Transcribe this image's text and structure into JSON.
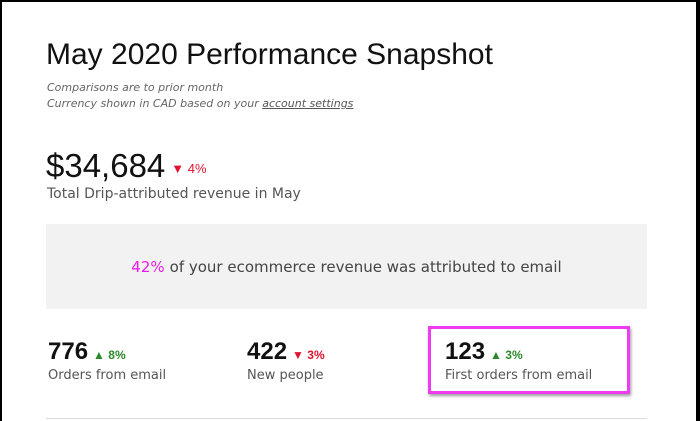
{
  "title": "May 2020 Performance Snapshot",
  "subtitle": {
    "line1": "Comparisons are to prior month",
    "line2_prefix": "Currency shown in CAD based on your ",
    "link": "account settings"
  },
  "revenue": {
    "value": "$34,684",
    "delta": "4%",
    "delta_direction": "down",
    "label": "Total Drip-attributed revenue in May"
  },
  "banner": {
    "percent": "42%",
    "text": "of your ecommerce revenue was attributed to email"
  },
  "stats": [
    {
      "value": "776",
      "delta": "8%",
      "direction": "up",
      "label": "Orders from email"
    },
    {
      "value": "422",
      "delta": "3%",
      "direction": "down",
      "label": "New people"
    },
    {
      "value": "123",
      "delta": "3%",
      "direction": "up",
      "label": "First orders from email",
      "highlighted": true
    }
  ],
  "colors": {
    "down": "#e0122e",
    "up": "#2a8a2a",
    "accent": "#e81ce8",
    "highlight_border": "#f03cf0"
  },
  "icons": {
    "down": "triangle-down-icon",
    "up": "triangle-up-icon"
  }
}
